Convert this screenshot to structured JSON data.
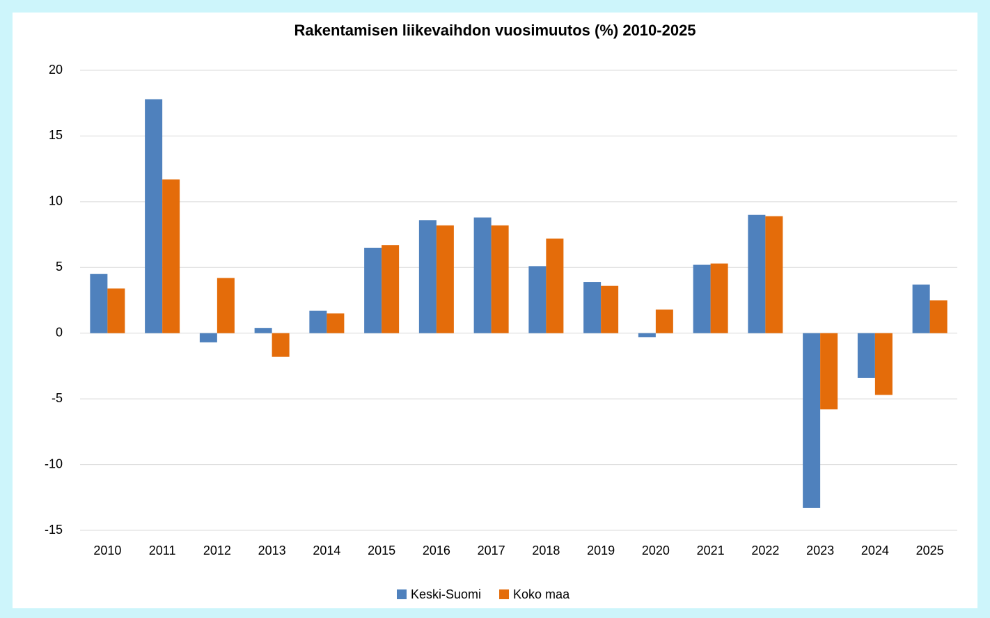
{
  "chart_data": {
    "type": "bar",
    "title": "Rakentamisen liikevaihdon vuosimuutos (%) 2010-2025",
    "categories": [
      "2010",
      "2011",
      "2012",
      "2013",
      "2014",
      "2015",
      "2016",
      "2017",
      "2018",
      "2019",
      "2020",
      "2021",
      "2022",
      "2023",
      "2024",
      "2025"
    ],
    "series": [
      {
        "name": "Keski-Suomi",
        "color": "#4f81bd",
        "values": [
          4.5,
          17.8,
          -0.7,
          0.4,
          1.7,
          6.5,
          8.6,
          8.8,
          5.1,
          3.9,
          -0.3,
          5.2,
          9.0,
          -13.3,
          -3.4,
          3.7
        ]
      },
      {
        "name": "Koko maa",
        "color": "#e46c0a",
        "values": [
          3.4,
          11.7,
          4.2,
          -1.8,
          1.5,
          6.7,
          8.2,
          8.2,
          7.2,
          3.6,
          1.8,
          5.3,
          8.9,
          -5.8,
          -4.7,
          2.5
        ]
      }
    ],
    "ylim": [
      -15,
      20
    ],
    "yticks": [
      -15,
      -10,
      -5,
      0,
      5,
      10,
      15,
      20
    ],
    "grid": true,
    "legend": "bottom"
  }
}
